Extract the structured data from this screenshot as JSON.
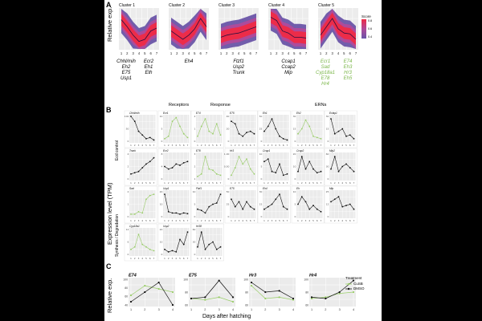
{
  "panels": {
    "a": "A",
    "b": "B",
    "c": "C"
  },
  "panel_a": {
    "ylabel": "Relative exp.",
    "colors": {
      "outer": "#6a55a8",
      "mid": "#b04a9a",
      "inner": "#ef2a45",
      "line": "#2a1040"
    },
    "legend": {
      "title": "Score",
      "ticks": [
        "0.8",
        "0.6",
        "0.4"
      ]
    },
    "x_ticks": [
      "1",
      "2",
      "3",
      "4",
      "5",
      "6",
      "7"
    ],
    "clusters": [
      {
        "title": "Cluster 1",
        "genes_left": [
          "Chhl/mih",
          "Eh2",
          "E75",
          "Usp1"
        ],
        "genes_right": [
          "Ecr2",
          "Eh1",
          "Eth"
        ],
        "gene_color": "#000000",
        "mean": [
          0.72,
          0.55,
          0.35,
          0.2,
          0.25,
          0.45,
          0.52
        ]
      },
      {
        "title": "Cluster 2",
        "genes_left": [
          "Eh4"
        ],
        "genes_right": [],
        "gene_color": "#000000",
        "mean": [
          0.45,
          0.35,
          0.25,
          0.35,
          0.5,
          0.75,
          0.55
        ]
      },
      {
        "title": "Cluster 3",
        "genes_left": [
          "Ftzf1",
          "Usp2",
          "Trunk"
        ],
        "genes_right": [],
        "gene_color": "#000000",
        "mean": [
          0.3,
          0.35,
          0.38,
          0.4,
          0.45,
          0.5,
          0.55
        ]
      },
      {
        "title": "Cluster 4",
        "genes_left": [
          "Ccap1",
          "Ccap2",
          "Mip"
        ],
        "genes_right": [],
        "gene_color": "#000000",
        "mean": [
          0.78,
          0.7,
          0.45,
          0.4,
          0.3,
          0.3,
          0.28
        ]
      },
      {
        "title": "Cluster 5",
        "genes_left": [
          "Ecr1",
          "Sad",
          "Cyp18a1",
          "E78",
          "Hr4"
        ],
        "genes_right": [
          "E74",
          "Eh3",
          "Hr3",
          "Eh5"
        ],
        "gene_color": "#7ab648",
        "mean": [
          0.35,
          0.55,
          0.75,
          0.5,
          0.4,
          0.38,
          0.25
        ]
      }
    ]
  },
  "panel_b": {
    "ylabel": "Expression level (TPM)",
    "row_labels": [
      "Ecd control",
      "Synthesis / Degradation"
    ],
    "headers": [
      "Receptors",
      "Response",
      "ERNs"
    ],
    "x_ticks": [
      "1",
      "2",
      "3",
      "4",
      "5",
      "6",
      "7"
    ],
    "black": "#111111",
    "green": "#9acd6a",
    "plots": [
      {
        "title": "Chhl/mih",
        "c": "k",
        "v": [
          100,
          80,
          40,
          25,
          10,
          15,
          5
        ],
        "yt": [
          "100",
          "50",
          "0"
        ]
      },
      {
        "title": "Ecr1",
        "c": "g",
        "v": [
          10,
          20,
          80,
          95,
          60,
          30,
          15
        ],
        "yt": [
          "10",
          "5",
          "0"
        ]
      },
      {
        "title": "E74",
        "c": "g",
        "v": [
          20,
          60,
          90,
          40,
          30,
          70,
          25
        ],
        "yt": [
          "2",
          "1",
          "0"
        ]
      },
      {
        "title": "E75",
        "c": "k",
        "v": [
          80,
          70,
          30,
          20,
          35,
          40,
          30
        ],
        "yt": [
          "40",
          "20",
          "0"
        ]
      },
      {
        "title": "Eh1",
        "c": "k",
        "v": [
          40,
          60,
          90,
          50,
          20,
          10,
          5
        ],
        "yt": [
          "50",
          "25",
          "0"
        ]
      },
      {
        "title": "Eh2",
        "c": "g",
        "v": [
          30,
          50,
          85,
          60,
          20,
          15,
          10
        ],
        "yt": [
          "30",
          "15",
          "0"
        ]
      },
      {
        "title": "Eclap1",
        "c": "k",
        "v": [
          90,
          30,
          40,
          50,
          20,
          25,
          10
        ],
        "yt": [
          "30",
          "15",
          "0"
        ]
      },
      {
        "title": "Trunk",
        "c": "k",
        "v": [
          20,
          25,
          30,
          45,
          60,
          70,
          85
        ],
        "yt": [
          "4",
          "2",
          "0"
        ]
      },
      {
        "title": "Ecr2",
        "c": "k",
        "v": [
          50,
          40,
          45,
          60,
          55,
          65,
          70
        ],
        "yt": [
          "8",
          "4",
          "0"
        ]
      },
      {
        "title": "E78",
        "c": "g",
        "v": [
          10,
          20,
          90,
          40,
          35,
          20,
          15
        ],
        "yt": [
          "3",
          "2",
          "1"
        ]
      },
      {
        "title": "Hr3",
        "c": "g",
        "v": [
          15,
          45,
          90,
          60,
          80,
          40,
          20
        ],
        "yt": [
          "1.00",
          "0.50",
          "0"
        ]
      },
      {
        "title": "Ccap1",
        "c": "k",
        "v": [
          70,
          80,
          30,
          25,
          60,
          15,
          20
        ],
        "yt": [
          "10",
          "5",
          "0"
        ]
      },
      {
        "title": "Ccap2",
        "c": "k",
        "v": [
          30,
          90,
          40,
          70,
          40,
          25,
          30
        ],
        "yt": [
          "20",
          "10",
          "0"
        ]
      },
      {
        "title": "Mip2",
        "c": "k",
        "v": [
          40,
          90,
          30,
          50,
          60,
          45,
          30
        ],
        "yt": [
          "60",
          "30",
          "0"
        ]
      },
      {
        "title": "Sad",
        "c": "g",
        "v": [
          10,
          10,
          20,
          15,
          70,
          85,
          90
        ],
        "yt": [
          "2",
          "1",
          "0"
        ]
      },
      {
        "title": "Usp1",
        "c": "k",
        "v": [
          90,
          20,
          15,
          15,
          10,
          15,
          12
        ],
        "yt": [
          "20",
          "10",
          "0"
        ]
      },
      {
        "title": "Ftzf1",
        "c": "k",
        "v": [
          30,
          25,
          15,
          40,
          50,
          55,
          90
        ],
        "yt": [
          "10",
          "5",
          "0"
        ]
      },
      {
        "title": "E75",
        "c": "k",
        "v": [
          70,
          40,
          60,
          30,
          60,
          40,
          30
        ],
        "yt": [
          "50",
          "25",
          "0"
        ]
      },
      {
        "title": "Eh4",
        "c": "k",
        "v": [
          30,
          40,
          50,
          70,
          90,
          40,
          30
        ],
        "yt": [
          "30",
          "15",
          "0"
        ]
      },
      {
        "title": "Eh",
        "c": "k",
        "v": [
          50,
          80,
          60,
          30,
          45,
          30,
          20
        ],
        "yt": [
          "10",
          "5",
          "0"
        ]
      },
      {
        "title": "Mip",
        "c": "k",
        "v": [
          60,
          70,
          80,
          40,
          45,
          50,
          30
        ],
        "yt": [
          "25",
          "12",
          "0"
        ]
      },
      {
        "title": "Cyp18a1",
        "c": "g",
        "v": [
          20,
          30,
          80,
          40,
          30,
          20,
          15
        ],
        "yt": [
          "12",
          "6",
          "0"
        ]
      },
      {
        "title": "Usp2",
        "c": "k",
        "v": [
          20,
          10,
          15,
          10,
          60,
          40,
          90
        ],
        "yt": [
          "20",
          "10",
          "0"
        ]
      },
      {
        "title": "Hr38",
        "c": "k",
        "v": [
          30,
          90,
          20,
          40,
          50,
          20,
          30
        ],
        "yt": [
          "60",
          "30",
          "0"
        ]
      }
    ]
  },
  "panel_c": {
    "ylabel": "Relative exp.",
    "xlabel": "Days after hatching",
    "x_ticks": [
      "1",
      "2",
      "3",
      "4"
    ],
    "legend": {
      "title": "Treatment",
      "items": [
        "CuSB",
        "DMSO"
      ]
    },
    "colors": {
      "cusb": "#9acd6a",
      "dmso": "#111111"
    },
    "y_range": [
      60,
      100
    ],
    "plots": [
      {
        "title": "E74",
        "yt": [
          "100",
          "80",
          "60",
          "40"
        ],
        "cusb": [
          75,
          90,
          85,
          80
        ],
        "dmso": [
          65,
          80,
          95,
          60
        ]
      },
      {
        "title": "E75",
        "yt": [
          "100",
          "80",
          "60"
        ],
        "cusb": [
          70,
          68,
          72,
          65
        ],
        "dmso": [
          70,
          72,
          98,
          72
        ]
      },
      {
        "title": "Hr3",
        "yt": [
          "100",
          "80",
          "60"
        ],
        "cusb": [
          90,
          70,
          72,
          68
        ],
        "dmso": [
          95,
          80,
          82,
          70
        ]
      },
      {
        "title": "Hr4",
        "yt": [
          "100",
          "80",
          "60"
        ],
        "cusb": [
          70,
          72,
          78,
          80
        ],
        "dmso": [
          72,
          70,
          80,
          98
        ]
      }
    ]
  }
}
